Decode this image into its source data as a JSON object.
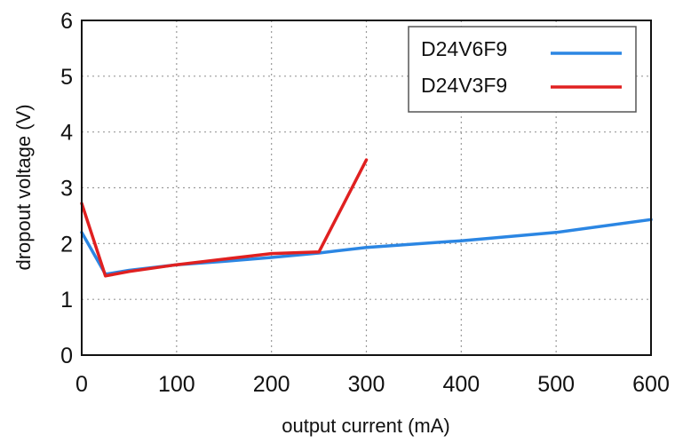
{
  "chart_data": {
    "type": "line",
    "title": "",
    "xlabel": "output current (mA)",
    "ylabel": "dropout voltage (V)",
    "xlim": [
      0,
      600
    ],
    "ylim": [
      0,
      6
    ],
    "xticks": [
      0,
      100,
      200,
      300,
      400,
      500,
      600
    ],
    "yticks": [
      0,
      1,
      2,
      3,
      4,
      5,
      6
    ],
    "grid": true,
    "legend_position": "top-right",
    "series": [
      {
        "name": "D24V6F9",
        "color": "#2b86e3",
        "x": [
          0,
          25,
          50,
          100,
          150,
          200,
          250,
          300,
          400,
          500,
          600
        ],
        "y": [
          2.2,
          1.45,
          1.52,
          1.62,
          1.68,
          1.75,
          1.83,
          1.93,
          2.05,
          2.2,
          2.43
        ]
      },
      {
        "name": "D24V3F9",
        "color": "#e02020",
        "x": [
          0,
          25,
          50,
          100,
          150,
          200,
          250,
          300
        ],
        "y": [
          2.72,
          1.42,
          1.5,
          1.62,
          1.72,
          1.82,
          1.85,
          3.5
        ]
      }
    ]
  }
}
